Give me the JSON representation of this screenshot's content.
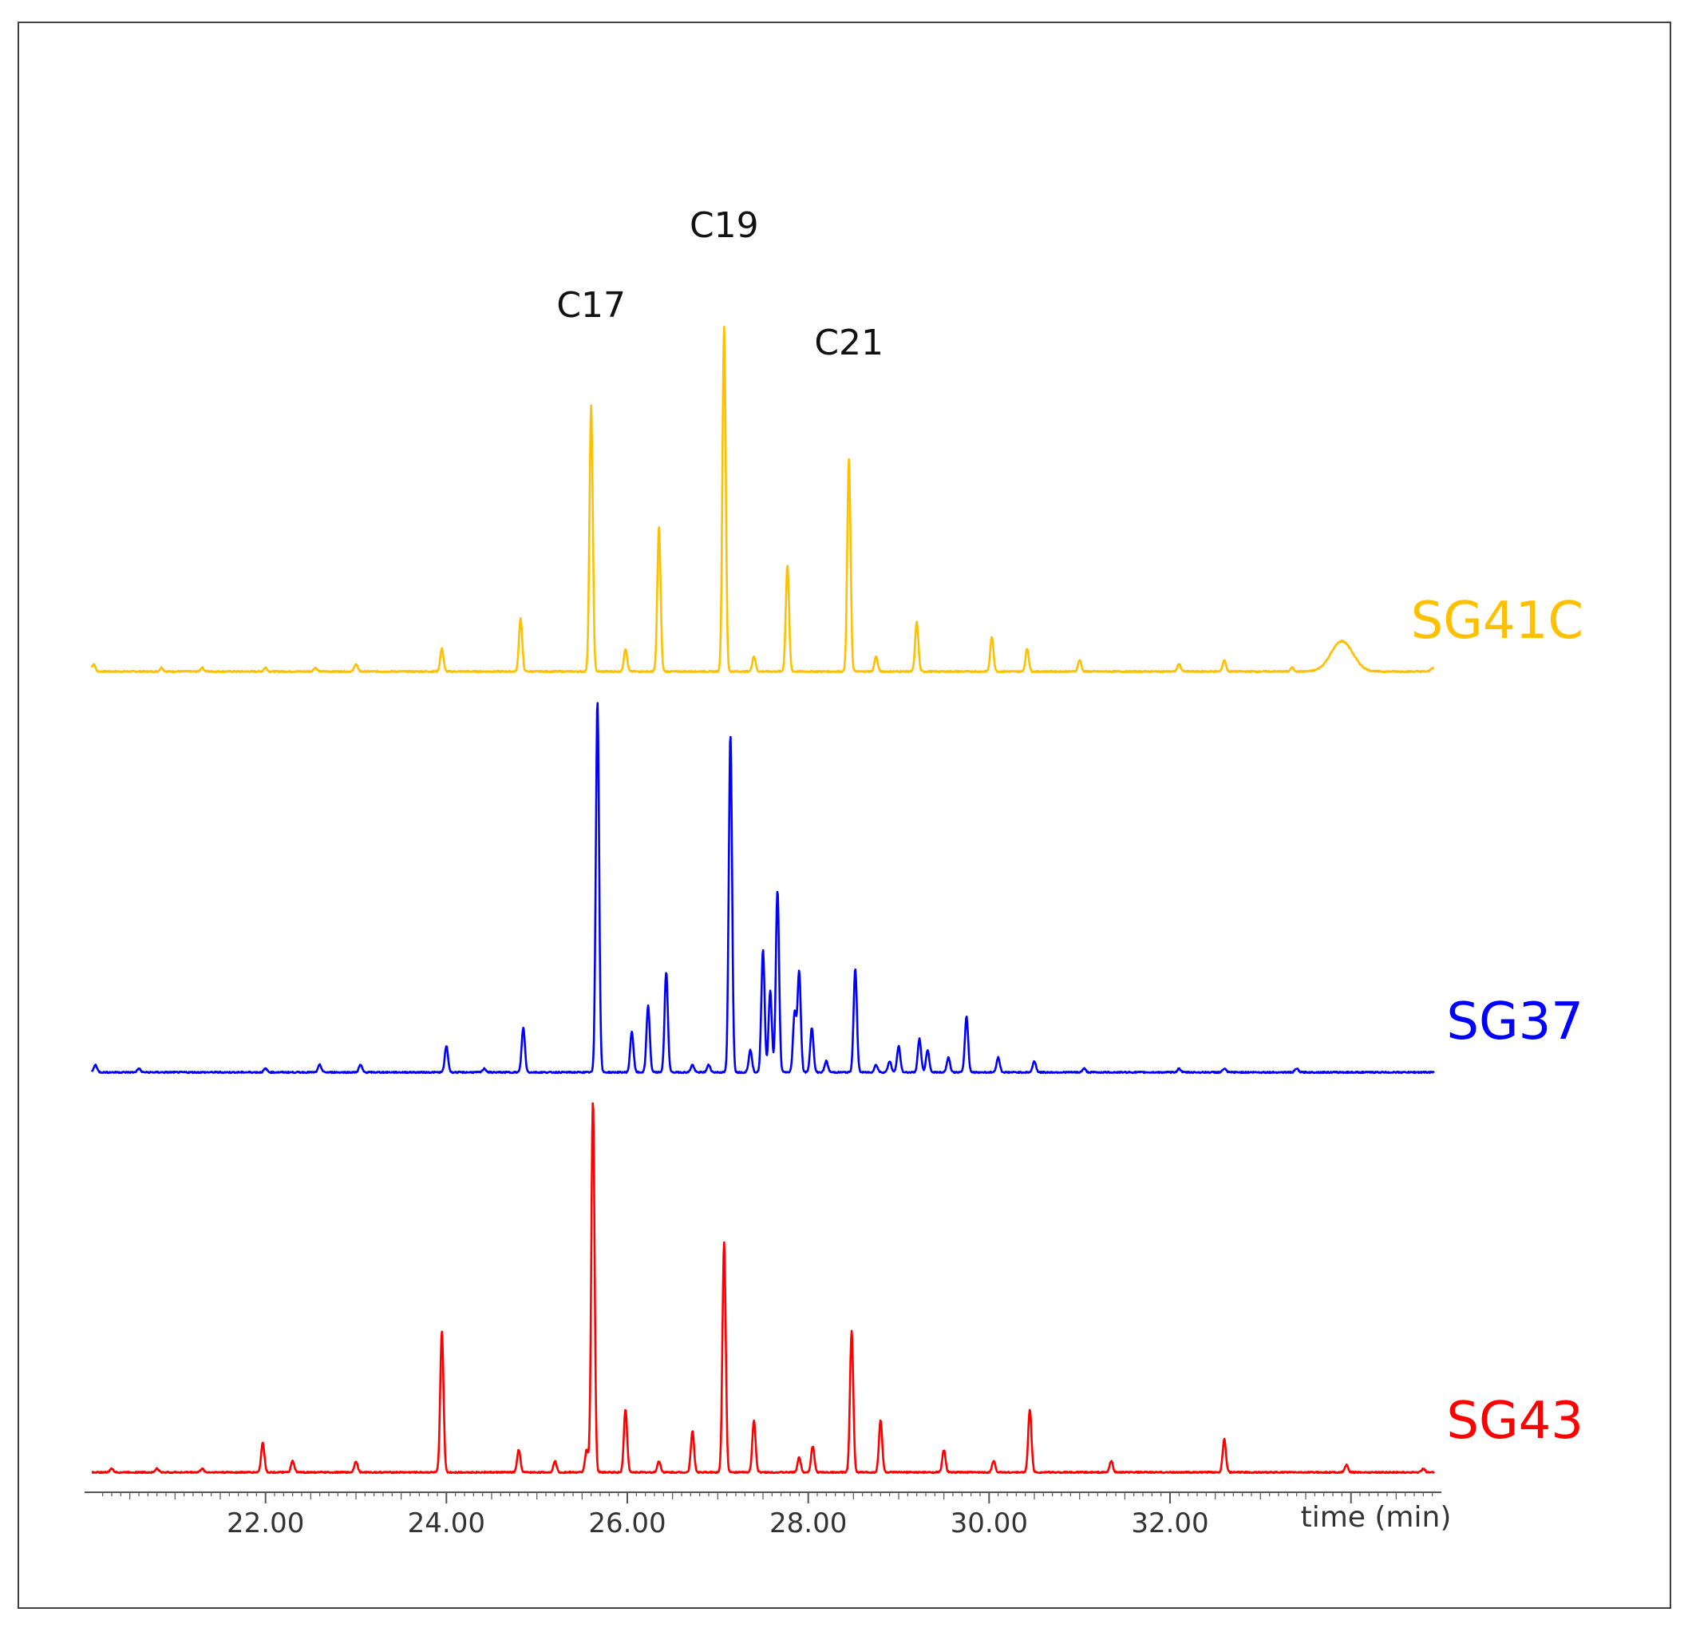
{
  "chart_data": {
    "type": "line",
    "title": "",
    "xlabel": "time (min)",
    "ylabel": "",
    "xlim": [
      20.0,
      35.0
    ],
    "ylim": [
      0,
      100
    ],
    "grid": false,
    "x_ticks": [
      "22.00",
      "24.00",
      "26.00",
      "28.00",
      "30.00",
      "32.00"
    ],
    "x_tick_values": [
      22,
      24,
      26,
      28,
      30,
      32
    ],
    "annotations": [
      {
        "text": "C17",
        "x": 25.6,
        "y": 100
      },
      {
        "text": "C19",
        "x": 27.07,
        "y": 100
      },
      {
        "text": "C21",
        "x": 28.45,
        "y": 100
      }
    ],
    "series": [
      {
        "name": "SG41C",
        "color": "#ffc000",
        "peaks": [
          {
            "rt": 20.1,
            "h": 2
          },
          {
            "rt": 20.85,
            "h": 1
          },
          {
            "rt": 21.3,
            "h": 1
          },
          {
            "rt": 22.0,
            "h": 1
          },
          {
            "rt": 22.55,
            "h": 1
          },
          {
            "rt": 23.0,
            "h": 2
          },
          {
            "rt": 23.95,
            "h": 6
          },
          {
            "rt": 24.82,
            "h": 14
          },
          {
            "rt": 25.6,
            "h": 70
          },
          {
            "rt": 25.98,
            "h": 6
          },
          {
            "rt": 26.35,
            "h": 38
          },
          {
            "rt": 27.07,
            "h": 91
          },
          {
            "rt": 27.4,
            "h": 4
          },
          {
            "rt": 27.77,
            "h": 28
          },
          {
            "rt": 28.45,
            "h": 56
          },
          {
            "rt": 28.75,
            "h": 4
          },
          {
            "rt": 29.2,
            "h": 13
          },
          {
            "rt": 30.03,
            "h": 9
          },
          {
            "rt": 30.42,
            "h": 6
          },
          {
            "rt": 31.0,
            "h": 3
          },
          {
            "rt": 32.1,
            "h": 2
          },
          {
            "rt": 32.6,
            "h": 3
          },
          {
            "rt": 33.35,
            "h": 1
          },
          {
            "rt": 33.9,
            "h": 8,
            "w": 0.12
          },
          {
            "rt": 34.9,
            "h": 1
          }
        ]
      },
      {
        "name": "SG37",
        "color": "#0000ff",
        "peaks": [
          {
            "rt": 20.12,
            "h": 2
          },
          {
            "rt": 20.6,
            "h": 1
          },
          {
            "rt": 22.0,
            "h": 1
          },
          {
            "rt": 22.6,
            "h": 2
          },
          {
            "rt": 23.05,
            "h": 2
          },
          {
            "rt": 24.0,
            "h": 7
          },
          {
            "rt": 24.42,
            "h": 1
          },
          {
            "rt": 24.85,
            "h": 12
          },
          {
            "rt": 25.67,
            "h": 100
          },
          {
            "rt": 26.05,
            "h": 11
          },
          {
            "rt": 26.23,
            "h": 18
          },
          {
            "rt": 26.43,
            "h": 27
          },
          {
            "rt": 26.72,
            "h": 2
          },
          {
            "rt": 26.9,
            "h": 2
          },
          {
            "rt": 27.14,
            "h": 91
          },
          {
            "rt": 27.36,
            "h": 6
          },
          {
            "rt": 27.5,
            "h": 33
          },
          {
            "rt": 27.58,
            "h": 22
          },
          {
            "rt": 27.66,
            "h": 49
          },
          {
            "rt": 27.85,
            "h": 16
          },
          {
            "rt": 27.9,
            "h": 27
          },
          {
            "rt": 28.04,
            "h": 12
          },
          {
            "rt": 28.2,
            "h": 3
          },
          {
            "rt": 28.52,
            "h": 28
          },
          {
            "rt": 28.75,
            "h": 2
          },
          {
            "rt": 28.9,
            "h": 3
          },
          {
            "rt": 29.0,
            "h": 7
          },
          {
            "rt": 29.23,
            "h": 9
          },
          {
            "rt": 29.32,
            "h": 6
          },
          {
            "rt": 29.55,
            "h": 4
          },
          {
            "rt": 29.75,
            "h": 15
          },
          {
            "rt": 30.1,
            "h": 4
          },
          {
            "rt": 30.5,
            "h": 3
          },
          {
            "rt": 31.05,
            "h": 1
          },
          {
            "rt": 32.1,
            "h": 1
          },
          {
            "rt": 32.6,
            "h": 1
          },
          {
            "rt": 33.4,
            "h": 1
          }
        ]
      },
      {
        "name": "SG43",
        "color": "#ff0000",
        "peaks": [
          {
            "rt": 20.3,
            "h": 1
          },
          {
            "rt": 20.8,
            "h": 1
          },
          {
            "rt": 21.3,
            "h": 1
          },
          {
            "rt": 21.97,
            "h": 8
          },
          {
            "rt": 22.3,
            "h": 3
          },
          {
            "rt": 23.0,
            "h": 3
          },
          {
            "rt": 23.95,
            "h": 38
          },
          {
            "rt": 24.8,
            "h": 6
          },
          {
            "rt": 25.2,
            "h": 3
          },
          {
            "rt": 25.55,
            "h": 6
          },
          {
            "rt": 25.62,
            "h": 100
          },
          {
            "rt": 25.98,
            "h": 17
          },
          {
            "rt": 26.35,
            "h": 3
          },
          {
            "rt": 26.72,
            "h": 11
          },
          {
            "rt": 27.07,
            "h": 62
          },
          {
            "rt": 27.4,
            "h": 14
          },
          {
            "rt": 27.9,
            "h": 4
          },
          {
            "rt": 28.05,
            "h": 7
          },
          {
            "rt": 28.48,
            "h": 38
          },
          {
            "rt": 28.8,
            "h": 14
          },
          {
            "rt": 29.5,
            "h": 6
          },
          {
            "rt": 30.05,
            "h": 3
          },
          {
            "rt": 30.45,
            "h": 17
          },
          {
            "rt": 31.35,
            "h": 3
          },
          {
            "rt": 32.6,
            "h": 9
          },
          {
            "rt": 33.95,
            "h": 2
          },
          {
            "rt": 34.8,
            "h": 1
          }
        ]
      }
    ]
  }
}
